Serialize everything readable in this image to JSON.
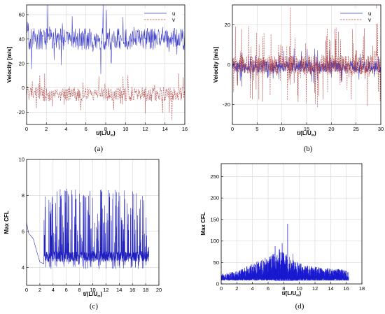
{
  "figure": {
    "background": "#ffffff"
  },
  "chart_data": [
    {
      "panel": "(a)",
      "type": "line",
      "xlabel": "t/(L/U∞)",
      "ylabel": "Velocity [m/s]",
      "xlim": [
        0,
        16
      ],
      "ylim": [
        -30,
        68
      ],
      "xticks": [
        0,
        2,
        4,
        6,
        8,
        10,
        12,
        14,
        16
      ],
      "yticks": [
        -20,
        0,
        20,
        40,
        60
      ],
      "grid": true,
      "legend_position": "top-right",
      "series": [
        {
          "name": "u",
          "color": "#3a3ac8",
          "dash": "solid",
          "mean": 40,
          "amp": 9,
          "spike": 22,
          "start": 50
        },
        {
          "name": "v",
          "color": "#b04040",
          "dash": "dashed",
          "mean": -5,
          "amp": 6,
          "spike": 18,
          "start": -2
        }
      ]
    },
    {
      "panel": "(b)",
      "type": "line",
      "xlabel": "t/(L/U∞)",
      "ylabel": "Velocity [m/s]",
      "xlim": [
        0,
        30
      ],
      "ylim": [
        -30,
        30
      ],
      "xticks": [
        0,
        5,
        10,
        15,
        20,
        25,
        30
      ],
      "yticks": [
        -20,
        0,
        20
      ],
      "grid": true,
      "legend_position": "top-right",
      "series": [
        {
          "name": "u",
          "color": "#3a3ac8",
          "dash": "solid",
          "mean": -1,
          "amp": 3,
          "spike": 8,
          "start": 0
        },
        {
          "name": "v",
          "color": "#b04040",
          "dash": "dashed",
          "mean": 0,
          "amp": 5,
          "spike": 14,
          "start": 2
        }
      ]
    },
    {
      "panel": "(c)",
      "type": "line",
      "xlabel": "t/(L/U∞)",
      "ylabel": "Max CFL",
      "xlim": [
        0,
        20
      ],
      "ylim": [
        3,
        10
      ],
      "xticks": [
        0,
        2,
        4,
        6,
        8,
        10,
        12,
        14,
        16,
        18,
        20
      ],
      "yticks": [
        4,
        6,
        8,
        10
      ],
      "grid": true,
      "series": [
        {
          "name": "",
          "color": "#2020c0",
          "dash": "solid",
          "tmax": 18.5,
          "initial": [
            [
              0.0,
              6.5
            ],
            [
              0.3,
              5.9
            ],
            [
              1.0,
              5.6
            ],
            [
              1.6,
              4.8
            ],
            [
              2.0,
              4.3
            ],
            [
              2.6,
              4.2
            ]
          ],
          "base": 4.3,
          "amp": 3.3
        }
      ]
    },
    {
      "panel": "(d)",
      "type": "area",
      "xlabel": "t/(L/U∞)",
      "ylabel": "Max CFL",
      "xlim": [
        0,
        18
      ],
      "ylim": [
        0,
        280
      ],
      "xticks": [
        0,
        2,
        4,
        6,
        8,
        10,
        12,
        14,
        16,
        18
      ],
      "yticks": [
        0,
        50,
        100,
        150,
        200,
        250
      ],
      "grid": true,
      "series": [
        {
          "name": "",
          "color": "#1a1ad0",
          "dash": "solid",
          "tmax": 16.3,
          "envelope": [
            [
              0,
              15
            ],
            [
              2,
              22
            ],
            [
              3.5,
              35
            ],
            [
              5,
              48
            ],
            [
              6.5,
              60
            ],
            [
              7.5,
              75
            ],
            [
              8.5,
              58
            ],
            [
              10,
              40
            ],
            [
              12,
              32
            ],
            [
              14,
              28
            ],
            [
              16.3,
              25
            ]
          ],
          "spikes": [
            [
              8.5,
              140
            ],
            [
              7.8,
              95
            ],
            [
              6.9,
              88
            ],
            [
              9.2,
              70
            ]
          ]
        }
      ]
    }
  ]
}
